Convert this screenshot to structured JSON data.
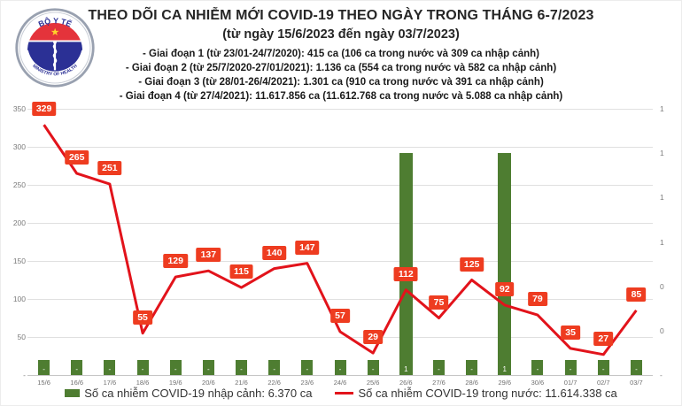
{
  "header": {
    "title": "THEO DÕI CA NHIỄM MỚI COVID-19 THEO NGÀY TRONG THÁNG 6-7/2023",
    "subtitle": "(từ ngày 15/6/2023 đến ngày 03/7/2023)",
    "lines": [
      "- Giai đoạn 1 (từ 23/01-24/7/2020): 415 ca (106 ca trong nước và 309 ca nhập cảnh)",
      "- Giai đoạn 2 (từ 25/7/2020-27/01/2021): 1.136 ca (554 ca trong nước và 582 ca nhập cảnh)",
      "- Giai đoạn 3 (từ 28/01-26/4/2021): 1.301 ca (910 ca trong nước và 391 ca nhập cảnh)",
      "- Giai đoạn 4 (từ 27/4/2021): 11.617.856 ca (11.612.768 ca trong nước và 5.088 ca nhập cảnh)"
    ]
  },
  "logo": {
    "top_text": "BỘ Y TẾ",
    "bottom_text": "MINISTRY OF HEALTH"
  },
  "colors": {
    "line": "#e2131b",
    "label_bg": "#ee3c20",
    "bar": "#4e7d31",
    "grid": "#e0e0e0",
    "axis": "#c6c6c6",
    "axis_text": "#7b7b7b"
  },
  "legend": [
    {
      "label": "Số ca nhiễm COVID-19 nhập cảnh: 6.370 ca",
      "color": "#4e7d31",
      "type": "bar"
    },
    {
      "label": "Số ca nhiễm COVID-19 trong nước: 11.614.338 ca",
      "color": "#e2131b",
      "type": "line"
    }
  ],
  "chart_data": {
    "type": "combo",
    "title": "THEO DÕI CA NHIỄM MỚI COVID-19 THEO NGÀY TRONG THÁNG 6-7/2023",
    "categories": [
      "15/6",
      "16/6",
      "17/6",
      "18/6",
      "19/6",
      "20/6",
      "21/6",
      "22/6",
      "23/6",
      "24/6",
      "25/6",
      "26/6",
      "27/6",
      "28/6",
      "29/6",
      "30/6",
      "01/7",
      "02/7",
      "03/7"
    ],
    "series": [
      {
        "name": "Số ca nhiễm COVID-19 nhập cảnh: 6.370 ca",
        "type": "bar",
        "axis": "right",
        "color": "#4e7d31",
        "values": [
          0,
          0,
          0,
          0,
          0,
          0,
          0,
          0,
          0,
          0,
          0,
          1,
          0,
          0,
          1,
          0,
          0,
          0,
          0
        ],
        "labels": [
          "-",
          "-",
          "-",
          "-",
          "-",
          "-",
          "-",
          "-",
          "-",
          "-",
          "-",
          "1",
          "-",
          "-",
          "1",
          "-",
          "-",
          "-",
          "-"
        ]
      },
      {
        "name": "Số ca nhiễm COVID-19 trong nước: 11.614.338 ca",
        "type": "line",
        "axis": "left",
        "color": "#e2131b",
        "values": [
          329,
          265,
          251,
          55,
          129,
          137,
          115,
          140,
          147,
          57,
          29,
          112,
          75,
          125,
          92,
          79,
          35,
          27,
          85
        ]
      }
    ],
    "left_axis": {
      "min": 0,
      "max": 350,
      "tick_labels": [
        "350",
        "300",
        "250",
        "200",
        "150",
        "100",
        "50",
        "-"
      ]
    },
    "right_axis": {
      "min": 0,
      "max": 1.2,
      "tick_labels": [
        "1",
        "1",
        "1",
        "1",
        "0",
        "0",
        "-"
      ]
    },
    "grid": true,
    "legend_position": "bottom"
  }
}
